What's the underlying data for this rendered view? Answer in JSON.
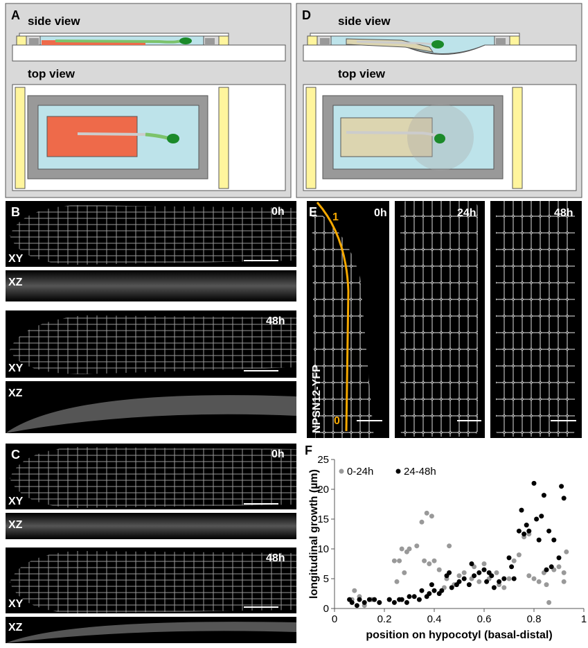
{
  "panels": {
    "A": {
      "label": "A",
      "side": "side view",
      "top": "top view"
    },
    "D": {
      "label": "D",
      "side": "side view",
      "top": "top view"
    },
    "B": {
      "label": "B",
      "t0": "0h",
      "xy0": "XY",
      "xz0": "XZ",
      "t1": "48h",
      "xy1": "XY",
      "xz1": "XZ"
    },
    "C": {
      "label": "C",
      "t0": "0h",
      "xy0": "XY",
      "xz0": "XZ",
      "t1": "48h",
      "xy1": "XY",
      "xz1": "XZ"
    },
    "E": {
      "label": "E",
      "t0": "0h",
      "t1": "24h",
      "t2": "48h",
      "marker": "NPSN12-YFP",
      "top": "1",
      "bottom": "0"
    },
    "F": {
      "label": "F"
    }
  },
  "chart_data": {
    "type": "scatter",
    "xlabel": "position on hypocotyl (basal-distal)",
    "ylabel": "longitudinal growth (µm)",
    "xlim": [
      0,
      1
    ],
    "xticks": [
      0,
      0.2,
      0.4,
      0.6,
      0.8,
      1
    ],
    "ylim": [
      0,
      25
    ],
    "yticks": [
      0,
      5,
      10,
      15,
      20,
      25
    ],
    "legend": "top-left",
    "series": [
      {
        "name": "0-24h",
        "color": "#999999",
        "x": [
          0.07,
          0.08,
          0.1,
          0.12,
          0.15,
          0.18,
          0.22,
          0.24,
          0.25,
          0.26,
          0.27,
          0.28,
          0.29,
          0.3,
          0.33,
          0.35,
          0.36,
          0.37,
          0.38,
          0.39,
          0.4,
          0.42,
          0.44,
          0.45,
          0.46,
          0.48,
          0.5,
          0.52,
          0.55,
          0.56,
          0.58,
          0.6,
          0.62,
          0.65,
          0.68,
          0.7,
          0.72,
          0.74,
          0.76,
          0.78,
          0.8,
          0.82,
          0.84,
          0.86,
          0.88,
          0.9,
          0.92,
          0.93,
          0.78,
          0.66,
          0.85,
          0.92
        ],
        "values": [
          1.5,
          3,
          2,
          0.5,
          1.5,
          1,
          1.5,
          8,
          4.5,
          8,
          10,
          6,
          9.5,
          10,
          10.5,
          14.5,
          8,
          16,
          7.5,
          15.5,
          8,
          6.5,
          3.5,
          5,
          10.5,
          4,
          5.5,
          6,
          5,
          7,
          4.5,
          7.5,
          5,
          6,
          3.5,
          5,
          8,
          9,
          12,
          12.5,
          5,
          4.5,
          6,
          1,
          6.5,
          7,
          4.5,
          9.5,
          5.5,
          4,
          4,
          6
        ]
      },
      {
        "name": "24-48h",
        "color": "#000000",
        "x": [
          0.06,
          0.07,
          0.09,
          0.1,
          0.12,
          0.14,
          0.16,
          0.18,
          0.22,
          0.24,
          0.26,
          0.27,
          0.29,
          0.3,
          0.32,
          0.34,
          0.35,
          0.37,
          0.38,
          0.39,
          0.4,
          0.42,
          0.43,
          0.45,
          0.46,
          0.47,
          0.49,
          0.5,
          0.52,
          0.54,
          0.55,
          0.56,
          0.58,
          0.6,
          0.61,
          0.62,
          0.63,
          0.64,
          0.66,
          0.68,
          0.7,
          0.71,
          0.72,
          0.74,
          0.75,
          0.76,
          0.77,
          0.78,
          0.8,
          0.81,
          0.82,
          0.83,
          0.84,
          0.85,
          0.86,
          0.87,
          0.9,
          0.91,
          0.92,
          0.88
        ],
        "values": [
          1.5,
          1,
          0.5,
          1.5,
          1,
          1.5,
          1.5,
          1,
          1.5,
          1,
          1.5,
          1.5,
          1,
          2,
          2,
          1.5,
          3,
          2,
          2.5,
          4,
          3,
          2.5,
          3,
          5.5,
          6,
          3.5,
          4,
          4.5,
          5,
          4,
          7.5,
          5.5,
          6,
          6.5,
          4.5,
          6,
          5.5,
          3.5,
          4.5,
          5,
          8.5,
          7,
          5,
          13,
          16.5,
          12.5,
          14,
          13,
          21,
          15,
          11.5,
          15.5,
          19,
          6.5,
          13,
          7,
          8.5,
          20.5,
          18.5,
          11.5
        ]
      }
    ]
  }
}
